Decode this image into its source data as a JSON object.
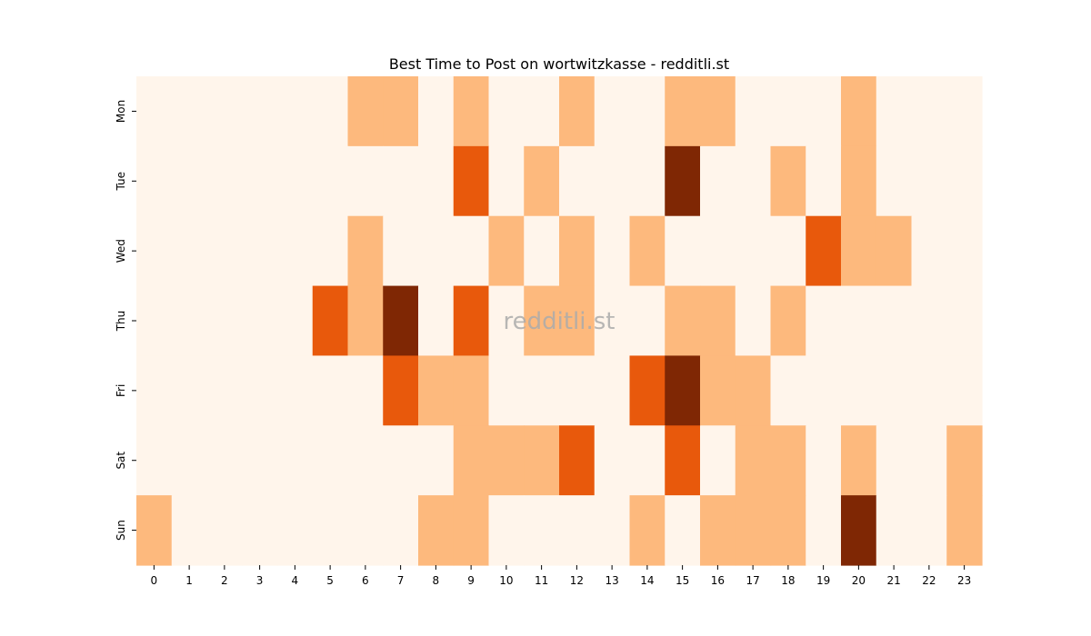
{
  "chart_data": {
    "type": "heatmap",
    "title": "Best Time to Post on wortwitzkasse - redditli.st",
    "watermark": "redditli.st",
    "x_categories": [
      "0",
      "1",
      "2",
      "3",
      "4",
      "5",
      "6",
      "7",
      "8",
      "9",
      "10",
      "11",
      "12",
      "13",
      "14",
      "15",
      "16",
      "17",
      "18",
      "19",
      "20",
      "21",
      "22",
      "23"
    ],
    "y_categories": [
      "Mon",
      "Tue",
      "Wed",
      "Thu",
      "Fri",
      "Sat",
      "Sun"
    ],
    "xlabel": "",
    "ylabel": "",
    "value_range": [
      0,
      3
    ],
    "colormap": [
      "#fff5eb",
      "#fdb97d",
      "#e8590c",
      "#7f2704"
    ],
    "values": [
      [
        0,
        0,
        0,
        0,
        0,
        0,
        1,
        1,
        0,
        1,
        0,
        0,
        1,
        0,
        0,
        1,
        1,
        0,
        0,
        0,
        1,
        0,
        0,
        0
      ],
      [
        0,
        0,
        0,
        0,
        0,
        0,
        0,
        0,
        0,
        2,
        0,
        1,
        0,
        0,
        0,
        3,
        0,
        0,
        1,
        0,
        1,
        0,
        0,
        0
      ],
      [
        0,
        0,
        0,
        0,
        0,
        0,
        1,
        0,
        0,
        0,
        1,
        0,
        1,
        0,
        1,
        0,
        0,
        0,
        0,
        2,
        1,
        1,
        0,
        0
      ],
      [
        0,
        0,
        0,
        0,
        0,
        2,
        1,
        3,
        0,
        2,
        0,
        1,
        1,
        0,
        0,
        1,
        1,
        0,
        1,
        0,
        0,
        0,
        0,
        0
      ],
      [
        0,
        0,
        0,
        0,
        0,
        0,
        0,
        2,
        1,
        1,
        0,
        0,
        0,
        0,
        2,
        3,
        1,
        1,
        0,
        0,
        0,
        0,
        0,
        0
      ],
      [
        0,
        0,
        0,
        0,
        0,
        0,
        0,
        0,
        0,
        1,
        1,
        1,
        2,
        0,
        0,
        2,
        0,
        1,
        1,
        0,
        1,
        0,
        0,
        1
      ],
      [
        1,
        0,
        0,
        0,
        0,
        0,
        0,
        0,
        1,
        1,
        0,
        0,
        0,
        0,
        1,
        0,
        1,
        1,
        1,
        0,
        3,
        0,
        0,
        1
      ]
    ]
  }
}
